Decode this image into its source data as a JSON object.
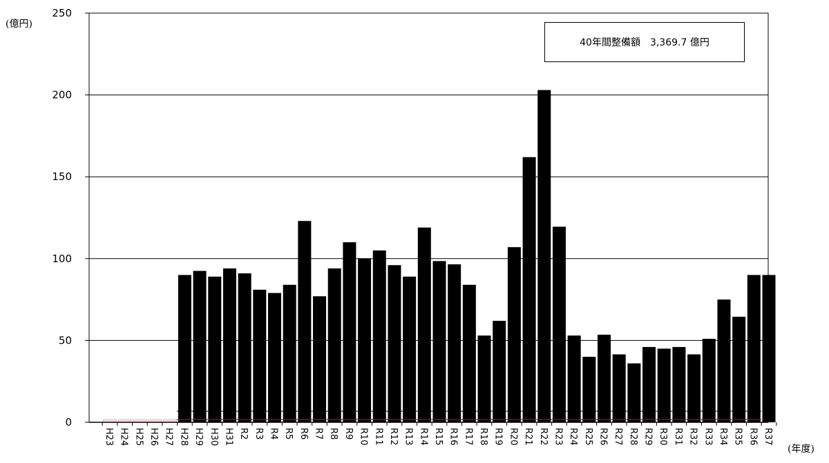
{
  "chart_data": {
    "type": "bar",
    "title": "",
    "xlabel": "(年度)",
    "ylabel": "(億円)",
    "ylim": [
      0,
      250
    ],
    "yticks": [
      0,
      50,
      100,
      150,
      200,
      250
    ],
    "grid": true,
    "annotation": "40年間整備額　3,369.7 億円",
    "colors": {
      "bar": "#000000",
      "placeholder_bar": "#f6dede",
      "baseline": "#8b1a1a"
    },
    "categories": [
      "H23",
      "H24",
      "H25",
      "H26",
      "H27",
      "H28",
      "H29",
      "H30",
      "H31",
      "R2",
      "R3",
      "R4",
      "R5",
      "R6",
      "R7",
      "R8",
      "R9",
      "R10",
      "R11",
      "R12",
      "R13",
      "R14",
      "R15",
      "R16",
      "R17",
      "R18",
      "R19",
      "R20",
      "R21",
      "R22",
      "R23",
      "R24",
      "R25",
      "R26",
      "R27",
      "R28",
      "R29",
      "R30",
      "R31",
      "R32",
      "R33",
      "R34",
      "R35",
      "R36",
      "R37"
    ],
    "values": [
      1,
      1,
      1,
      1,
      1,
      90,
      92.5,
      89,
      94,
      91,
      81,
      79,
      84,
      123,
      77,
      94,
      110,
      100,
      105,
      96,
      89,
      119,
      98.5,
      96.5,
      84,
      53,
      62,
      107,
      162,
      203,
      119.5,
      53,
      40,
      53.5,
      41.5,
      36,
      46,
      45,
      46,
      41.5,
      51,
      75,
      64.5,
      90,
      90
    ]
  }
}
